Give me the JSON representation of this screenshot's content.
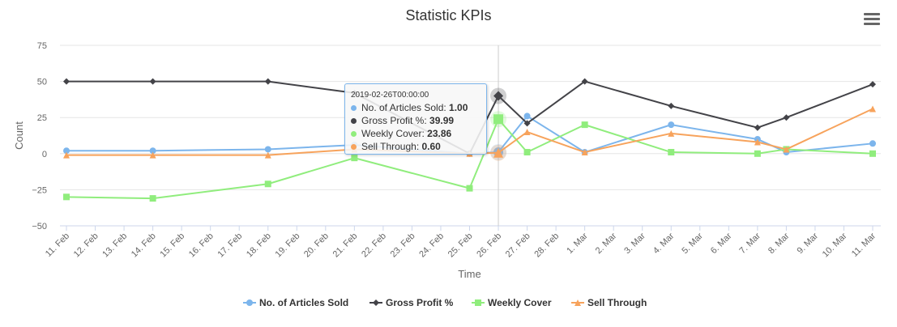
{
  "chart_data": {
    "type": "line",
    "title": "Statistic KPIs",
    "xlabel": "Time",
    "ylabel": "Count",
    "ylim": [
      -50,
      75
    ],
    "yticks": [
      -50,
      -25,
      0,
      25,
      50,
      75
    ],
    "ytick_labels": [
      "−50",
      "−25",
      "0",
      "25",
      "50",
      "75"
    ],
    "xticks": [
      "11. Feb",
      "12. Feb",
      "13. Feb",
      "14. Feb",
      "15. Feb",
      "16. Feb",
      "17. Feb",
      "18. Feb",
      "19. Feb",
      "20. Feb",
      "21. Feb",
      "22. Feb",
      "23. Feb",
      "24. Feb",
      "25. Feb",
      "26. Feb",
      "27. Feb",
      "28. Feb",
      "1. Mar",
      "2. Mar",
      "3. Mar",
      "4. Mar",
      "5. Mar",
      "6. Mar",
      "7. Mar",
      "8. Mar",
      "9. Mar",
      "10. Mar",
      "11. Mar"
    ],
    "x": [
      "11. Feb",
      "14. Feb",
      "18. Feb",
      "21. Feb",
      "25. Feb",
      "26. Feb",
      "27. Feb",
      "1. Mar",
      "4. Mar",
      "7. Mar",
      "8. Mar",
      "11. Mar"
    ],
    "grid": true,
    "legend": "bottom-center",
    "series": [
      {
        "name": "No. of Articles Sold",
        "color": "#7cb5ec",
        "marker": "circle",
        "values": [
          2,
          2,
          3,
          6,
          0,
          1,
          26,
          1,
          20,
          10,
          1,
          7
        ]
      },
      {
        "name": "Gross Profit %",
        "color": "#434348",
        "marker": "diamond",
        "values": [
          50,
          50,
          50,
          42,
          0,
          39.99,
          21,
          50,
          33,
          18,
          25,
          48
        ]
      },
      {
        "name": "Weekly Cover",
        "color": "#90ed7d",
        "marker": "square",
        "values": [
          -30,
          -31,
          -21,
          -3,
          -24,
          23.86,
          1,
          20,
          1,
          0,
          3,
          0
        ]
      },
      {
        "name": "Sell Through",
        "color": "#f7a35c",
        "marker": "triangle",
        "values": [
          -1,
          -1,
          -1,
          3,
          0,
          0.6,
          15,
          1,
          14,
          8,
          3,
          31
        ]
      }
    ],
    "tooltip": {
      "header": "2019-02-26T00:00:00",
      "x": "26. Feb",
      "rows": [
        {
          "label": "No. of Articles Sold: ",
          "value": "1.00",
          "color": "#7cb5ec"
        },
        {
          "label": "Gross Profit %: ",
          "value": "39.99",
          "color": "#434348"
        },
        {
          "label": "Weekly Cover: ",
          "value": "23.86",
          "color": "#90ed7d"
        },
        {
          "label": "Sell Through: ",
          "value": "0.60",
          "color": "#f7a35c"
        }
      ]
    }
  }
}
